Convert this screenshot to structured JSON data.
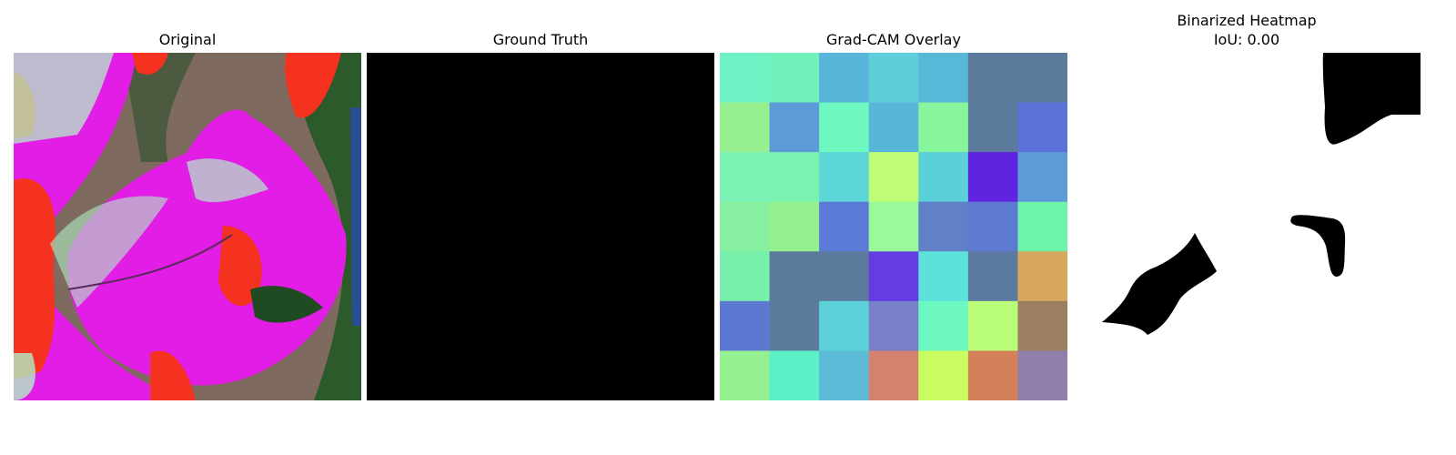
{
  "figure": {
    "panels": [
      {
        "title": "Original"
      },
      {
        "title": "Ground Truth"
      },
      {
        "title": "Grad-CAM Overlay"
      },
      {
        "title": "Binarized Heatmap",
        "subtitle": "IoU: 0.00"
      }
    ]
  },
  "chart_data": [
    {
      "type": "image",
      "title": "Original",
      "description_colors": [
        "#e21ee6",
        "#f5311f",
        "#b0f0c4",
        "#5a5a50",
        "#1f4a22"
      ]
    },
    {
      "type": "image",
      "title": "Ground Truth",
      "fill_color": "#000000"
    },
    {
      "type": "heatmap",
      "title": "Grad-CAM Overlay",
      "rows": 7,
      "cols": 7,
      "cell_colors": [
        [
          "#6ef2c4",
          "#72f0bc",
          "#58b4d8",
          "#5ccfd8",
          "#58b8d8",
          "#5c7a9c",
          "#5c7a9c"
        ],
        [
          "#96f090",
          "#5c9ad8",
          "#6cf8c0",
          "#58b6d8",
          "#86f59c",
          "#5c7a9c",
          "#5c72d8"
        ],
        [
          "#7af2b4",
          "#7af2b0",
          "#5cd6d8",
          "#c0fc78",
          "#5cd0d8",
          "#6024e0",
          "#5c9ad8"
        ],
        [
          "#86f0a0",
          "#94f090",
          "#5c7ad8",
          "#98fa9a",
          "#6080c8",
          "#5c7ad0",
          "#6ef4a8"
        ],
        [
          "#78f0ac",
          "#5c7a9c",
          "#5c7a9c",
          "#643ce4",
          "#5ce2d8",
          "#5c7aa0",
          "#d8a860"
        ],
        [
          "#5c78d0",
          "#5c7a9c",
          "#5cd2d8",
          "#7880c8",
          "#6cf8c0",
          "#b8fc78",
          "#9a8060"
        ],
        [
          "#94f090",
          "#5cf0c8",
          "#5cbcd8",
          "#d48270",
          "#c8fc60",
          "#d48058",
          "#8e80aa"
        ]
      ]
    },
    {
      "type": "mask",
      "title": "Binarized Heatmap",
      "subtitle": "IoU: 0.00",
      "background": "#ffffff",
      "region_color": "#000000",
      "regions": [
        "top-right",
        "center-right",
        "lower-left"
      ]
    }
  ]
}
